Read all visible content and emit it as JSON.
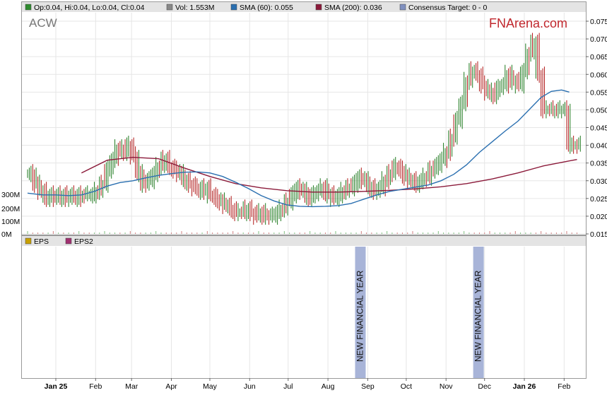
{
  "header": {
    "ticker": "ACW",
    "brand": "FNArena.com",
    "legend": [
      {
        "label": "Op:0.04, Hi:0.04, Lo:0.04, Cl:0.04",
        "color": "#2e8b2e"
      },
      {
        "label": "Vol: 1.553M",
        "color": "#888888"
      },
      {
        "label": "SMA (60): 0.055",
        "color": "#2a6fb0"
      },
      {
        "label": "SMA (200): 0.036",
        "color": "#8b1a3a"
      },
      {
        "label": "Consensus Target: 0 - 0",
        "color": "#8090c0"
      }
    ],
    "legend2": [
      {
        "label": "EPS",
        "color": "#c8a000"
      },
      {
        "label": "EPS2",
        "color": "#a03070"
      }
    ]
  },
  "colors": {
    "up": "#1f7a1f",
    "down": "#b01818",
    "sma60": "#2a6fb0",
    "sma200": "#8b1a3a",
    "band": "#a8b4d8",
    "grid": "#e6e6e6"
  },
  "chart_data": {
    "type": "line",
    "y_ticks": [
      "0.075",
      "0.070",
      "0.065",
      "0.060",
      "0.055",
      "0.050",
      "0.045",
      "0.040",
      "0.035",
      "0.030",
      "0.025",
      "0.020",
      "0.015"
    ],
    "ylim": [
      0.015,
      0.075
    ],
    "volume_ticks": [
      "300M",
      "200M",
      "100M",
      "0M"
    ],
    "months": [
      {
        "label": "Jan 25",
        "bold": true,
        "day": 0
      },
      {
        "label": "Feb",
        "bold": false,
        "day": 31
      },
      {
        "label": "Mar",
        "bold": false,
        "day": 59
      },
      {
        "label": "Apr",
        "bold": false,
        "day": 90
      },
      {
        "label": "May",
        "bold": false,
        "day": 120
      },
      {
        "label": "Jun",
        "bold": false,
        "day": 151
      },
      {
        "label": "Jul",
        "bold": false,
        "day": 181
      },
      {
        "label": "Aug",
        "bold": false,
        "day": 212
      },
      {
        "label": "Sep",
        "bold": false,
        "day": 243
      },
      {
        "label": "Oct",
        "bold": false,
        "day": 273
      },
      {
        "label": "Nov",
        "bold": false,
        "day": 304
      },
      {
        "label": "Dec",
        "bold": false,
        "day": 334
      },
      {
        "label": "Jan 26",
        "bold": true,
        "day": 365
      },
      {
        "label": "Feb",
        "bold": false,
        "day": 396
      }
    ],
    "price": [
      [
        -22,
        0.032
      ],
      [
        -18,
        0.029
      ],
      [
        -14,
        0.027
      ],
      [
        -10,
        0.025
      ],
      [
        -6,
        0.026
      ],
      [
        -2,
        0.025
      ],
      [
        2,
        0.026
      ],
      [
        6,
        0.025
      ],
      [
        10,
        0.026
      ],
      [
        14,
        0.025
      ],
      [
        18,
        0.026
      ],
      [
        22,
        0.026
      ],
      [
        26,
        0.026
      ],
      [
        30,
        0.027
      ],
      [
        34,
        0.029
      ],
      [
        38,
        0.033
      ],
      [
        42,
        0.036
      ],
      [
        46,
        0.039
      ],
      [
        50,
        0.038
      ],
      [
        54,
        0.04
      ],
      [
        58,
        0.037
      ],
      [
        62,
        0.032
      ],
      [
        66,
        0.029
      ],
      [
        70,
        0.03
      ],
      [
        74,
        0.032
      ],
      [
        78,
        0.034
      ],
      [
        82,
        0.036
      ],
      [
        86,
        0.034
      ],
      [
        90,
        0.033
      ],
      [
        94,
        0.032
      ],
      [
        98,
        0.03
      ],
      [
        102,
        0.029
      ],
      [
        106,
        0.028
      ],
      [
        110,
        0.027
      ],
      [
        114,
        0.028
      ],
      [
        118,
        0.026
      ],
      [
        122,
        0.025
      ],
      [
        126,
        0.024
      ],
      [
        130,
        0.023
      ],
      [
        134,
        0.022
      ],
      [
        138,
        0.021
      ],
      [
        142,
        0.021
      ],
      [
        146,
        0.022
      ],
      [
        150,
        0.021
      ],
      [
        154,
        0.02
      ],
      [
        158,
        0.021
      ],
      [
        162,
        0.02
      ],
      [
        166,
        0.02
      ],
      [
        170,
        0.021
      ],
      [
        174,
        0.022
      ],
      [
        178,
        0.024
      ],
      [
        182,
        0.026
      ],
      [
        186,
        0.028
      ],
      [
        190,
        0.027
      ],
      [
        194,
        0.025
      ],
      [
        198,
        0.026
      ],
      [
        202,
        0.027
      ],
      [
        206,
        0.028
      ],
      [
        210,
        0.026
      ],
      [
        214,
        0.025
      ],
      [
        218,
        0.026
      ],
      [
        222,
        0.027
      ],
      [
        226,
        0.028
      ],
      [
        230,
        0.029
      ],
      [
        234,
        0.031
      ],
      [
        238,
        0.03
      ],
      [
        242,
        0.028
      ],
      [
        246,
        0.027
      ],
      [
        250,
        0.028
      ],
      [
        254,
        0.03
      ],
      [
        258,
        0.032
      ],
      [
        262,
        0.034
      ],
      [
        266,
        0.033
      ],
      [
        270,
        0.031
      ],
      [
        274,
        0.03
      ],
      [
        278,
        0.029
      ],
      [
        282,
        0.03
      ],
      [
        286,
        0.031
      ],
      [
        290,
        0.033
      ],
      [
        294,
        0.034
      ],
      [
        298,
        0.036
      ],
      [
        302,
        0.038
      ],
      [
        306,
        0.042
      ],
      [
        310,
        0.047
      ],
      [
        314,
        0.052
      ],
      [
        318,
        0.058
      ],
      [
        322,
        0.061
      ],
      [
        326,
        0.06
      ],
      [
        330,
        0.057
      ],
      [
        334,
        0.055
      ],
      [
        338,
        0.054
      ],
      [
        342,
        0.056
      ],
      [
        346,
        0.057
      ],
      [
        350,
        0.06
      ],
      [
        354,
        0.058
      ],
      [
        358,
        0.057
      ],
      [
        362,
        0.061
      ],
      [
        366,
        0.066
      ],
      [
        370,
        0.069
      ],
      [
        374,
        0.06
      ],
      [
        378,
        0.05
      ],
      [
        382,
        0.05
      ],
      [
        386,
        0.05
      ],
      [
        390,
        0.05
      ],
      [
        394,
        0.05
      ],
      [
        398,
        0.04
      ],
      [
        402,
        0.04
      ],
      [
        406,
        0.04
      ]
    ],
    "sma60": [
      [
        -22,
        0.0265
      ],
      [
        -10,
        0.026
      ],
      [
        0,
        0.026
      ],
      [
        10,
        0.0258
      ],
      [
        20,
        0.026
      ],
      [
        30,
        0.027
      ],
      [
        40,
        0.0285
      ],
      [
        50,
        0.0295
      ],
      [
        60,
        0.03
      ],
      [
        70,
        0.0308
      ],
      [
        80,
        0.0315
      ],
      [
        90,
        0.032
      ],
      [
        100,
        0.0324
      ],
      [
        110,
        0.0325
      ],
      [
        120,
        0.0322
      ],
      [
        130,
        0.0312
      ],
      [
        140,
        0.0296
      ],
      [
        150,
        0.0278
      ],
      [
        160,
        0.0258
      ],
      [
        170,
        0.0243
      ],
      [
        180,
        0.0232
      ],
      [
        190,
        0.0228
      ],
      [
        200,
        0.0227
      ],
      [
        210,
        0.0228
      ],
      [
        220,
        0.023
      ],
      [
        230,
        0.0236
      ],
      [
        240,
        0.0248
      ],
      [
        250,
        0.026
      ],
      [
        260,
        0.027
      ],
      [
        270,
        0.0276
      ],
      [
        280,
        0.0282
      ],
      [
        290,
        0.0288
      ],
      [
        300,
        0.03
      ],
      [
        310,
        0.0318
      ],
      [
        320,
        0.0345
      ],
      [
        330,
        0.038
      ],
      [
        340,
        0.041
      ],
      [
        350,
        0.044
      ],
      [
        360,
        0.0468
      ],
      [
        370,
        0.0505
      ],
      [
        378,
        0.0535
      ],
      [
        386,
        0.0552
      ],
      [
        394,
        0.0556
      ],
      [
        400,
        0.055
      ]
    ],
    "sma200": [
      [
        20,
        0.0322
      ],
      [
        40,
        0.0358
      ],
      [
        60,
        0.0366
      ],
      [
        80,
        0.0362
      ],
      [
        100,
        0.0336
      ],
      [
        120,
        0.0312
      ],
      [
        140,
        0.0292
      ],
      [
        160,
        0.028
      ],
      [
        180,
        0.0272
      ],
      [
        200,
        0.0268
      ],
      [
        220,
        0.0268
      ],
      [
        240,
        0.027
      ],
      [
        260,
        0.0273
      ],
      [
        280,
        0.0277
      ],
      [
        300,
        0.0283
      ],
      [
        320,
        0.0292
      ],
      [
        340,
        0.0305
      ],
      [
        360,
        0.0322
      ],
      [
        380,
        0.0342
      ],
      [
        400,
        0.0356
      ],
      [
        406,
        0.036
      ]
    ],
    "events": [
      {
        "label": "NEW FINANCIAL YEAR",
        "day": 237
      },
      {
        "label": "NEW FINANCIAL YEAR",
        "day": 329
      }
    ]
  }
}
